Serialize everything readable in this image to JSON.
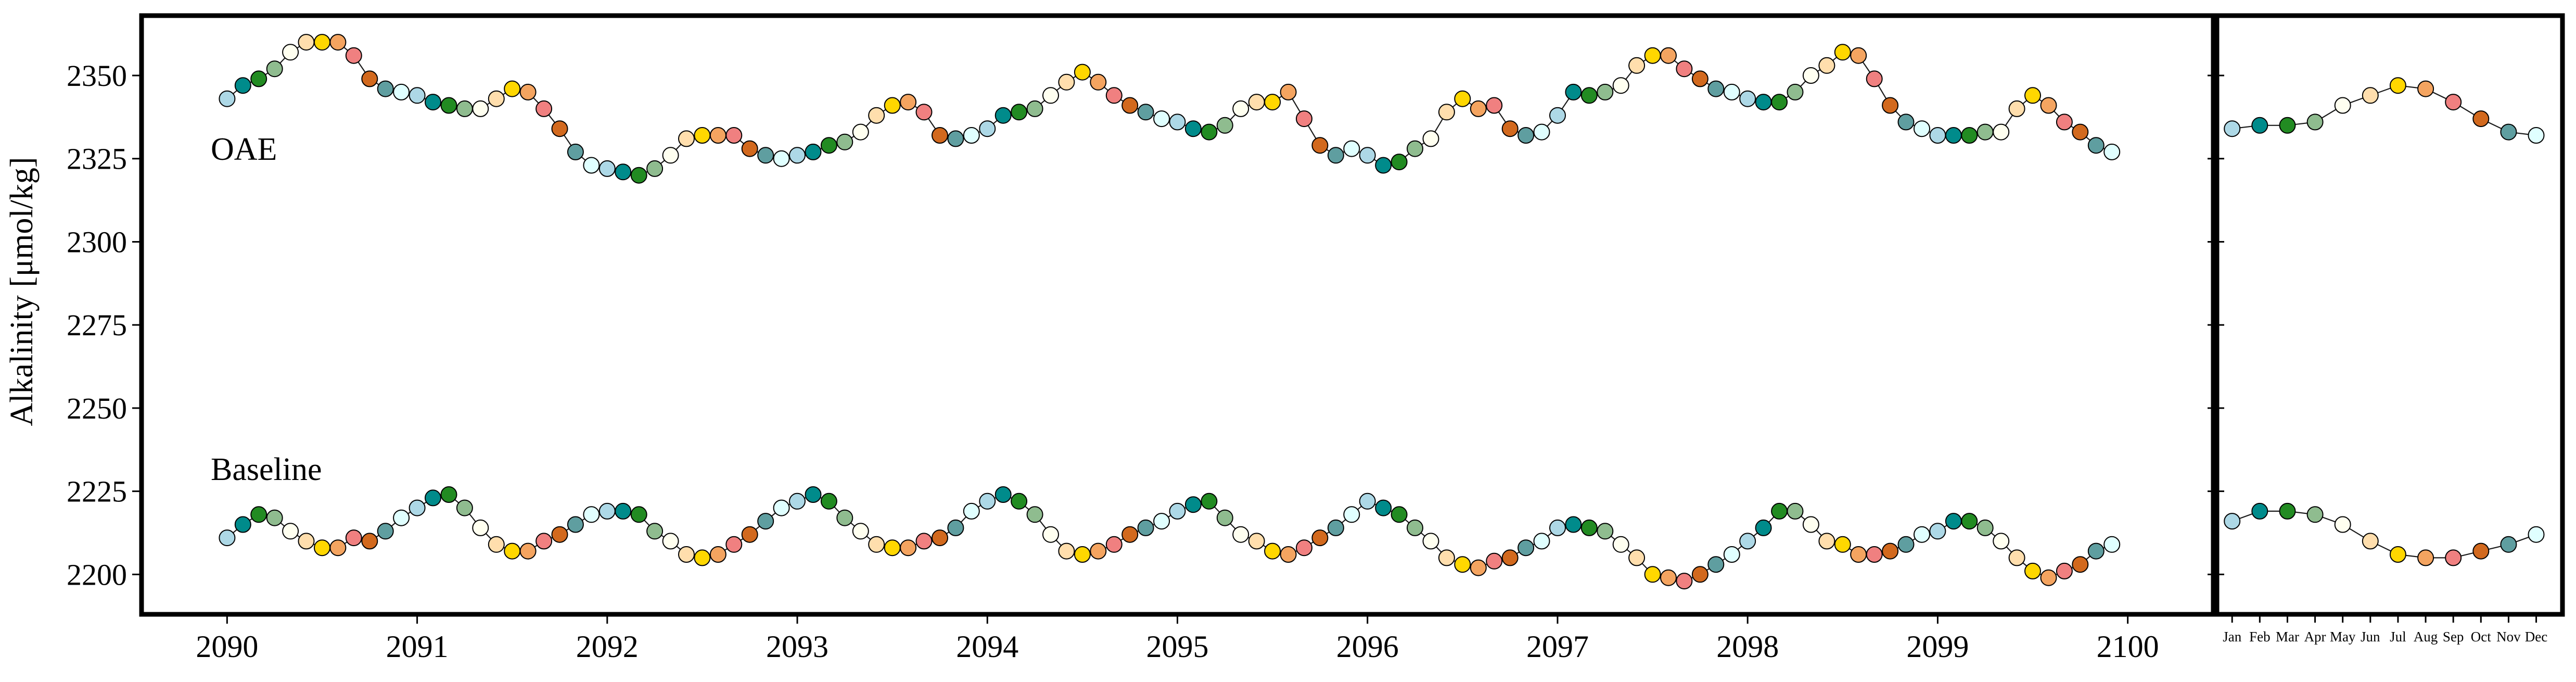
{
  "chart_data": [
    {
      "type": "line",
      "ylabel": "Alkalinity [μmol/kg]",
      "ylim": [
        2188,
        2368
      ],
      "xlim": [
        2089.55,
        2100.45
      ],
      "yticks": [
        2200,
        2225,
        2250,
        2275,
        2300,
        2325,
        2350
      ],
      "xticks": [
        2090,
        2091,
        2092,
        2093,
        2094,
        2095,
        2096,
        2097,
        2098,
        2099,
        2100
      ],
      "xtick_labels": [
        "2090",
        "2091",
        "2092",
        "2093",
        "2094",
        "2095",
        "2096",
        "2097",
        "2098",
        "2099",
        "2100"
      ],
      "marker_colors_by_month": [
        "#add8e6",
        "#008b8b",
        "#228b22",
        "#8fbc8f",
        "#fffff0",
        "#ffdead",
        "#ffd700",
        "#f4a460",
        "#f08080",
        "#d2691e",
        "#5f9ea0",
        "#e0ffff"
      ],
      "series": [
        {
          "name": "OAE",
          "start_year": 2090,
          "values": [
            2343,
            2347,
            2349,
            2352,
            2357,
            2360,
            2360,
            2360,
            2356,
            2349,
            2346,
            2345,
            2344,
            2342,
            2341,
            2340,
            2340,
            2343,
            2346,
            2345,
            2340,
            2334,
            2327,
            2323,
            2322,
            2321,
            2320,
            2322,
            2326,
            2331,
            2332,
            2332,
            2332,
            2328,
            2326,
            2325,
            2326,
            2327,
            2329,
            2330,
            2333,
            2338,
            2341,
            2342,
            2339,
            2332,
            2331,
            2332,
            2334,
            2338,
            2339,
            2340,
            2344,
            2348,
            2351,
            2348,
            2344,
            2341,
            2339,
            2337,
            2336,
            2334,
            2333,
            2335,
            2340,
            2342,
            2342,
            2345,
            2337,
            2329,
            2326,
            2328,
            2326,
            2323,
            2324,
            2328,
            2331,
            2339,
            2343,
            2340,
            2341,
            2334,
            2332,
            2333,
            2338,
            2345,
            2344,
            2345,
            2347,
            2353,
            2356,
            2356,
            2352,
            2349,
            2346,
            2345,
            2343,
            2342,
            2342,
            2345,
            2350,
            2353,
            2357,
            2356,
            2349,
            2341,
            2336,
            2334,
            2332,
            2332,
            2332,
            2333,
            2333,
            2340,
            2344,
            2341,
            2336,
            2333,
            2329,
            2327
          ]
        },
        {
          "name": "Baseline",
          "start_year": 2090,
          "values": [
            2211,
            2215,
            2218,
            2217,
            2213,
            2210,
            2208,
            2208,
            2211,
            2210,
            2213,
            2217,
            2220,
            2223,
            2224,
            2220,
            2214,
            2209,
            2207,
            2207,
            2210,
            2212,
            2215,
            2218,
            2219,
            2219,
            2218,
            2213,
            2210,
            2206,
            2205,
            2206,
            2209,
            2212,
            2216,
            2220,
            2222,
            2224,
            2222,
            2217,
            2213,
            2209,
            2208,
            2208,
            2210,
            2211,
            2214,
            2219,
            2222,
            2224,
            2222,
            2218,
            2212,
            2207,
            2206,
            2207,
            2209,
            2212,
            2214,
            2216,
            2219,
            2221,
            2222,
            2217,
            2212,
            2210,
            2207,
            2206,
            2208,
            2211,
            2214,
            2218,
            2222,
            2220,
            2218,
            2214,
            2210,
            2205,
            2203,
            2202,
            2204,
            2205,
            2208,
            2210,
            2214,
            2215,
            2214,
            2213,
            2209,
            2205,
            2200,
            2199,
            2198,
            2200,
            2203,
            2206,
            2210,
            2214,
            2219,
            2219,
            2215,
            2210,
            2209,
            2206,
            2206,
            2207,
            2209,
            2212,
            2213,
            2216,
            2216,
            2214,
            2210,
            2205,
            2201,
            2199,
            2201,
            2203,
            2207,
            2209
          ]
        }
      ],
      "annotations": [
        "OAE",
        "Baseline"
      ]
    },
    {
      "type": "line",
      "categories": [
        "Jan",
        "Feb",
        "Mar",
        "Apr",
        "May",
        "Jun",
        "Jul",
        "Aug",
        "Sep",
        "Oct",
        "Nov",
        "Dec"
      ],
      "ylim": [
        2188,
        2368
      ],
      "series": [
        {
          "name": "OAE",
          "values": [
            2334,
            2335,
            2335,
            2336,
            2341,
            2344,
            2347,
            2346,
            2342,
            2337,
            2333,
            2332
          ]
        },
        {
          "name": "Baseline",
          "values": [
            2216,
            2219,
            2219,
            2218,
            2215,
            2210,
            2206,
            2205,
            2205,
            2207,
            2209,
            2212
          ]
        }
      ]
    }
  ]
}
